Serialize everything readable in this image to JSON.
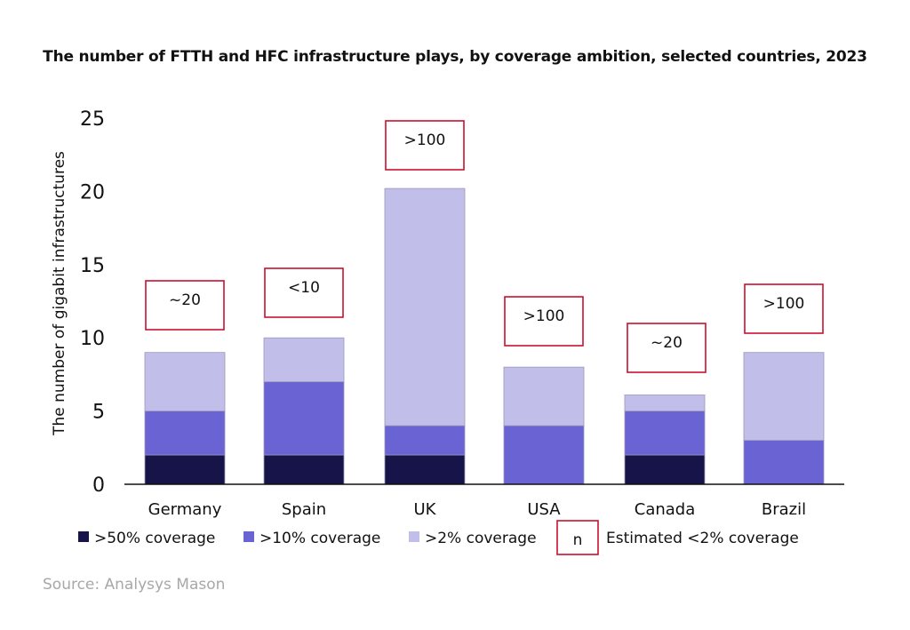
{
  "chart_data": {
    "type": "bar",
    "stacked": true,
    "title": "The number of FTTH and HFC infrastructure plays, by coverage ambition, selected countries, 2023",
    "xlabel": "",
    "ylabel": "The number of gigabit infrastructures",
    "ylim": [
      0,
      25
    ],
    "yticks": [
      0,
      5,
      10,
      15,
      20,
      25
    ],
    "grid": false,
    "legend_position": "bottom",
    "categories": [
      "Germany",
      "Spain",
      "UK",
      "USA",
      "Canada",
      "Brazil"
    ],
    "series": [
      {
        "name": ">50% coverage",
        "color": "#17144a",
        "values": [
          2,
          2,
          2,
          0,
          2,
          0
        ]
      },
      {
        "name": ">10% coverage",
        "color": "#6a63d4",
        "values": [
          3,
          5,
          2,
          4,
          3,
          3
        ]
      },
      {
        "name": ">2% coverage",
        "color": "#c2beea",
        "values": [
          4,
          3,
          16.2,
          4,
          1.1,
          6
        ]
      }
    ],
    "annotations": [
      "~20",
      "<10",
      ">100",
      ">100",
      "~20",
      ">100"
    ],
    "annotation_legend": {
      "symbol": "n",
      "label": "Estimated <2% coverage",
      "color": "#c8102e"
    },
    "source": "Source: Analysys Mason"
  }
}
